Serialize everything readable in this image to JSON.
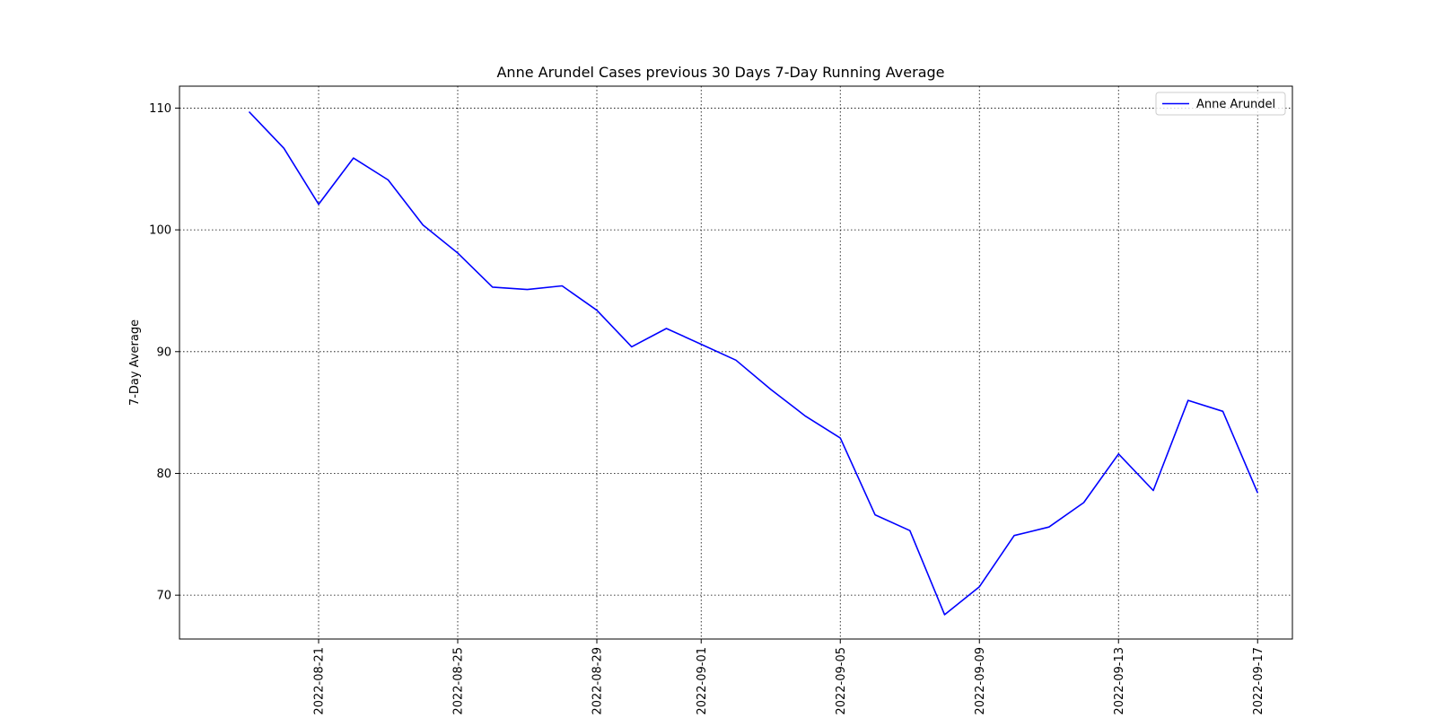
{
  "chart_data": {
    "type": "line",
    "title": "Anne Arundel Cases previous 30 Days 7-Day Running Average",
    "xlabel": "",
    "ylabel": "7-Day Average",
    "x_tick_labels": [
      "2022-08-21",
      "2022-08-25",
      "2022-08-29",
      "2022-09-01",
      "2022-09-05",
      "2022-09-09",
      "2022-09-13",
      "2022-09-17"
    ],
    "y_ticks": [
      70,
      80,
      90,
      100,
      110
    ],
    "xlim": [
      "2022-08-17",
      "2022-09-18"
    ],
    "ylim": [
      66.4,
      111.8
    ],
    "grid": true,
    "legend_position": "top-right",
    "series": [
      {
        "name": "Anne Arundel",
        "color": "#0000ff",
        "x": [
          "2022-08-19",
          "2022-08-20",
          "2022-08-21",
          "2022-08-22",
          "2022-08-23",
          "2022-08-24",
          "2022-08-25",
          "2022-08-26",
          "2022-08-27",
          "2022-08-28",
          "2022-08-29",
          "2022-08-30",
          "2022-08-31",
          "2022-09-01",
          "2022-09-02",
          "2022-09-03",
          "2022-09-04",
          "2022-09-05",
          "2022-09-06",
          "2022-09-07",
          "2022-09-08",
          "2022-09-09",
          "2022-09-10",
          "2022-09-11",
          "2022-09-12",
          "2022-09-13",
          "2022-09-14",
          "2022-09-15",
          "2022-09-16",
          "2022-09-17"
        ],
        "values": [
          109.7,
          106.7,
          102.1,
          105.9,
          104.1,
          100.4,
          98.1,
          95.3,
          95.1,
          95.4,
          93.4,
          90.4,
          91.9,
          90.6,
          89.3,
          86.9,
          84.7,
          82.9,
          76.6,
          75.3,
          68.4,
          70.7,
          74.9,
          75.6,
          77.6,
          81.6,
          78.6,
          86.0,
          85.1,
          78.4
        ]
      }
    ]
  }
}
